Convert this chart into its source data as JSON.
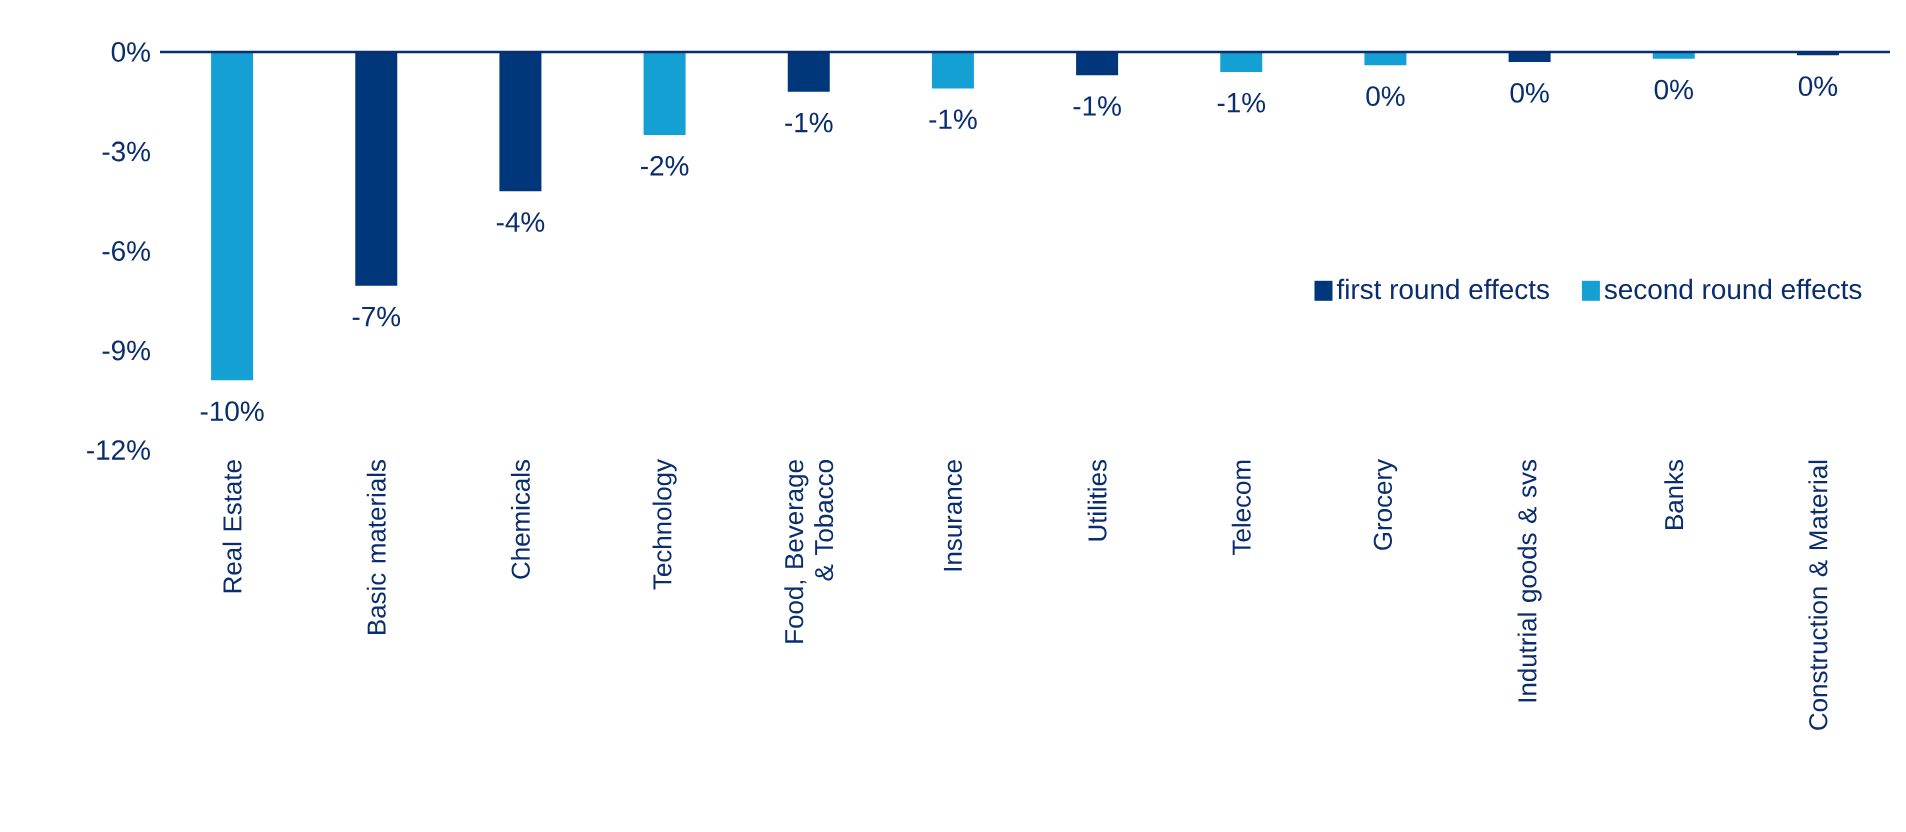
{
  "chart_data": {
    "type": "bar",
    "categories": [
      "Real Estate",
      "Basic materials",
      "Chemicals",
      "Technology",
      "Food, Beverage & Tobacco",
      "Insurance",
      "Utilities",
      "Telecom",
      "Grocery",
      "Indutrial goods & svs",
      "Banks",
      "Construction & Material"
    ],
    "series": [
      {
        "name": "first round effects",
        "color": "#00377a",
        "values": [
          null,
          -7.05,
          -4.2,
          null,
          -1.2,
          null,
          -0.7,
          null,
          null,
          -0.3,
          null,
          -0.1
        ],
        "value_labels": [
          null,
          "-7%",
          "-4%",
          null,
          "-1%",
          null,
          "-1%",
          null,
          null,
          "0%",
          null,
          "0%"
        ]
      },
      {
        "name": "second round effects",
        "color": "#14a0d2",
        "values": [
          -9.9,
          null,
          null,
          -2.5,
          null,
          -1.1,
          null,
          -0.6,
          -0.4,
          null,
          -0.2,
          null
        ],
        "value_labels": [
          "-10%",
          null,
          null,
          "-2%",
          null,
          "-1%",
          null,
          "-1%",
          "0%",
          null,
          "0%",
          null
        ]
      }
    ],
    "ylim": [
      -12,
      0
    ],
    "yticks": [
      {
        "value": -12,
        "label": "-12%"
      },
      {
        "value": -9,
        "label": "-9%"
      },
      {
        "value": -6,
        "label": "-6%"
      },
      {
        "value": -3,
        "label": "-3%"
      },
      {
        "value": 0,
        "label": "0%"
      }
    ],
    "grid": false,
    "legend": "right"
  }
}
